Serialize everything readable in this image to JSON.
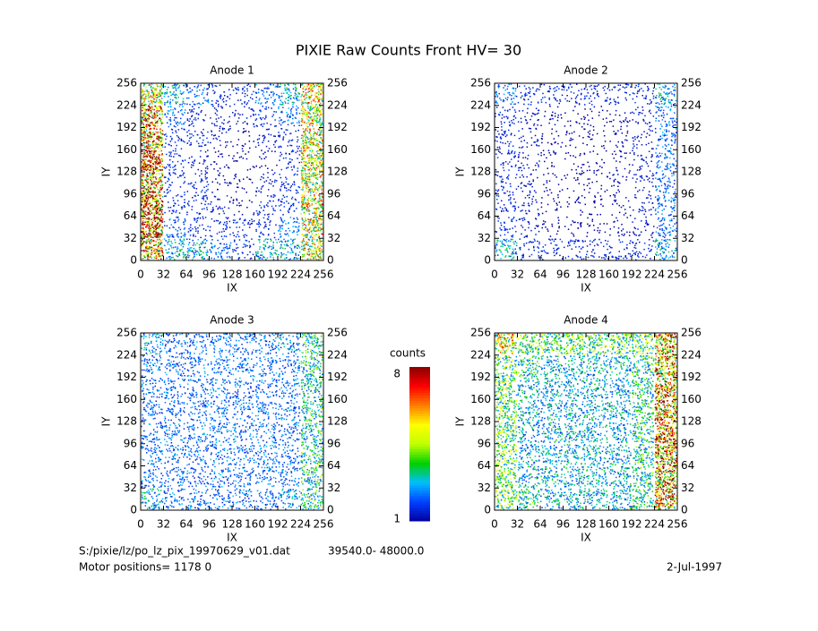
{
  "title": "PIXIE Raw Counts Front HV= 30",
  "chart_data": [
    {
      "type": "heatmap",
      "title": "Anode 1",
      "xlabel": "IX",
      "ylabel": "IY",
      "xlim": [
        0,
        256
      ],
      "ylim": [
        0,
        256
      ],
      "xticks": [
        0,
        32,
        64,
        96,
        128,
        160,
        192,
        224,
        256
      ],
      "yticks": [
        0,
        32,
        64,
        96,
        128,
        160,
        192,
        224,
        256
      ],
      "z": [
        [
          5,
          2,
          2,
          1.5,
          1,
          2,
          2,
          4
        ],
        [
          6,
          1.5,
          1,
          1,
          1,
          1,
          1.5,
          4
        ],
        [
          6,
          1,
          1,
          0.8,
          0.5,
          1,
          1,
          4
        ],
        [
          5,
          1,
          1,
          0.5,
          0.5,
          0.8,
          1,
          4
        ],
        [
          6,
          1,
          0.8,
          0.5,
          0.5,
          0.5,
          1,
          4
        ],
        [
          5,
          1,
          1,
          0.8,
          0.5,
          0.8,
          1,
          4
        ],
        [
          5,
          1.5,
          1,
          0.8,
          0.8,
          1,
          1.5,
          4
        ],
        [
          4,
          2,
          1.5,
          1,
          1,
          1.5,
          2,
          4
        ]
      ]
    },
    {
      "type": "heatmap",
      "title": "Anode 2",
      "xlabel": "IX",
      "ylabel": "IY",
      "xlim": [
        0,
        256
      ],
      "ylim": [
        0,
        256
      ],
      "xticks": [
        0,
        32,
        64,
        96,
        128,
        160,
        192,
        224,
        256
      ],
      "yticks": [
        0,
        32,
        64,
        96,
        128,
        160,
        192,
        224,
        256
      ],
      "z": [
        [
          2,
          1,
          1,
          1,
          1,
          1,
          1,
          2
        ],
        [
          1,
          0.8,
          0.5,
          0.5,
          0.5,
          0.6,
          0.8,
          1.5
        ],
        [
          1,
          0.8,
          0.5,
          0.5,
          0.5,
          0.6,
          0.8,
          1.5
        ],
        [
          1,
          0.8,
          0.5,
          0.5,
          0.5,
          0.6,
          0.8,
          1.5
        ],
        [
          1,
          0.8,
          0.5,
          0.5,
          0.5,
          0.6,
          0.8,
          1.5
        ],
        [
          1,
          0.8,
          0.5,
          0.5,
          0.5,
          0.6,
          0.8,
          1.5
        ],
        [
          1,
          0.8,
          0.6,
          0.5,
          0.5,
          0.6,
          0.8,
          1.5
        ],
        [
          1.5,
          1,
          1,
          1,
          1,
          1,
          1,
          2
        ]
      ]
    },
    {
      "type": "heatmap",
      "title": "Anode 3",
      "xlabel": "IX",
      "ylabel": "IY",
      "xlim": [
        0,
        256
      ],
      "ylim": [
        0,
        256
      ],
      "xticks": [
        0,
        32,
        64,
        96,
        128,
        160,
        192,
        224,
        256
      ],
      "yticks": [
        0,
        32,
        64,
        96,
        128,
        160,
        192,
        224,
        256
      ],
      "z": [
        [
          2,
          1.5,
          1.5,
          1.5,
          1.5,
          1.5,
          1.8,
          2.5
        ],
        [
          1.5,
          1.5,
          1.5,
          1.5,
          1.5,
          1.5,
          1.5,
          2.5
        ],
        [
          1.5,
          1.5,
          1.5,
          1.5,
          1.5,
          1.5,
          1.5,
          2.5
        ],
        [
          1.5,
          1.5,
          1.5,
          1.5,
          1.5,
          1.5,
          1.5,
          2.5
        ],
        [
          1.5,
          1.5,
          1.5,
          1.5,
          1.5,
          1.5,
          1.5,
          2.5
        ],
        [
          1.5,
          1.5,
          1.5,
          1.5,
          1.5,
          1.5,
          1.5,
          2.5
        ],
        [
          1.5,
          1.5,
          1.5,
          1.5,
          1.5,
          1.5,
          1.5,
          2.5
        ],
        [
          1.8,
          1.5,
          1.5,
          1.5,
          1.5,
          1.5,
          1.8,
          2.5
        ]
      ]
    },
    {
      "type": "heatmap",
      "title": "Anode 4",
      "xlabel": "IX",
      "ylabel": "IY",
      "xlim": [
        0,
        256
      ],
      "ylim": [
        0,
        256
      ],
      "xticks": [
        0,
        32,
        64,
        96,
        128,
        160,
        192,
        224,
        256
      ],
      "yticks": [
        0,
        32,
        64,
        96,
        128,
        160,
        192,
        224,
        256
      ],
      "z": [
        [
          3,
          2.5,
          2,
          2,
          2,
          2,
          2.5,
          5
        ],
        [
          3,
          2,
          2,
          2,
          2,
          2,
          2.5,
          5
        ],
        [
          3,
          2,
          2,
          2,
          2,
          2,
          2.5,
          5
        ],
        [
          3,
          2,
          2,
          2,
          2,
          2,
          2.5,
          5
        ],
        [
          3,
          2,
          2,
          2,
          2,
          2,
          2.5,
          5
        ],
        [
          3,
          2,
          2,
          2,
          2,
          2,
          2.5,
          5
        ],
        [
          3,
          2.5,
          2,
          2,
          2,
          2,
          2.5,
          5
        ],
        [
          4,
          3,
          3,
          3,
          3,
          3,
          3,
          5
        ]
      ]
    }
  ],
  "colorbar": {
    "label": "counts",
    "zlim": [
      1,
      8
    ],
    "ticks": [
      8,
      1
    ],
    "colormap": [
      "#0000a0",
      "#0040ff",
      "#00c0ff",
      "#00d000",
      "#c0ff00",
      "#ffff00",
      "#ff8000",
      "#ff0000",
      "#8b0000"
    ]
  },
  "footer": {
    "file": "S:/pixie/lz/po_lz_pix_19970629_v01.dat",
    "range": "39540.0- 48000.0",
    "motor": "Motor positions= 1178 0",
    "date": "2-Jul-1997"
  }
}
